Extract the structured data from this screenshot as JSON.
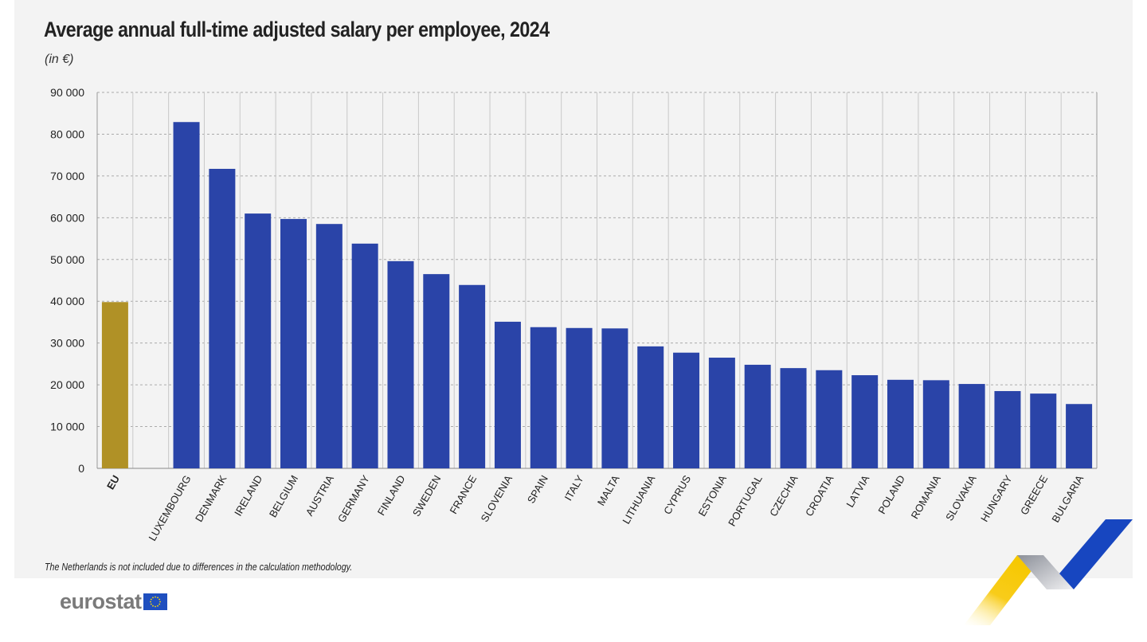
{
  "chart_data": {
    "type": "bar",
    "title": "Average annual full-time adjusted salary per employee, 2024",
    "unit": "(in €)",
    "categories": [
      "EU",
      "",
      "LUXEMBOURG",
      "DENMARK",
      "IRELAND",
      "BELGIUM",
      "AUSTRIA",
      "GERMANY",
      "FINLAND",
      "SWEDEN",
      "FRANCE",
      "SLOVENIA",
      "SPAIN",
      "ITALY",
      "MALTA",
      "LITHUANIA",
      "CYPRUS",
      "ESTONIA",
      "PORTUGAL",
      "CZECHIA",
      "CROATIA",
      "LATVIA",
      "POLAND",
      "ROMANIA",
      "SLOVAKIA",
      "HUNGARY",
      "GREECE",
      "BULGARIA"
    ],
    "values": [
      39800,
      null,
      82900,
      71700,
      61000,
      59700,
      58500,
      53800,
      49600,
      46500,
      43900,
      35100,
      33800,
      33600,
      33500,
      29200,
      27700,
      26500,
      24800,
      24000,
      23500,
      22300,
      21200,
      21100,
      20200,
      18500,
      17900,
      15400
    ],
    "ylim": [
      0,
      90000
    ],
    "yticks": [
      0,
      10000,
      20000,
      30000,
      40000,
      50000,
      60000,
      70000,
      80000,
      90000
    ],
    "ytick_labels": [
      "0",
      "10 000",
      "20 000",
      "30 000",
      "40 000",
      "50 000",
      "60 000",
      "70 000",
      "80 000",
      "90 000"
    ],
    "grid": true,
    "colors": {
      "eu": "#b09126",
      "country": "#2a44a8"
    },
    "note": "The Netherlands is not included due to differences in the calculation methodology."
  },
  "branding": {
    "logo": "eurostat"
  }
}
